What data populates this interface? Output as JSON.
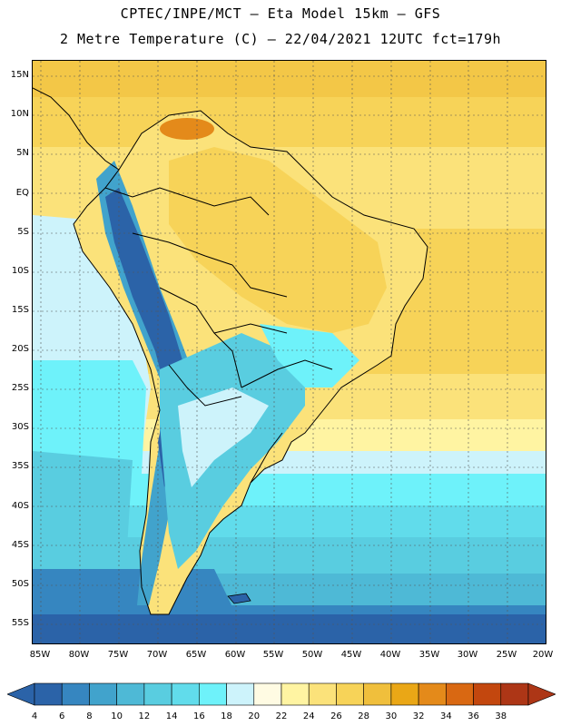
{
  "header": {
    "title_line1": "CPTEC/INPE/MCT –  Eta Model 15km – GFS",
    "title_line2": "2 Metre Temperature (C) – 22/04/2021 12UTC fct=179h"
  },
  "map": {
    "region": "South America",
    "lat_labels": [
      "15N",
      "10N",
      "5N",
      "EQ",
      "5S",
      "10S",
      "15S",
      "20S",
      "25S",
      "30S",
      "35S",
      "40S",
      "45S",
      "50S",
      "55S"
    ],
    "lon_labels": [
      "85W",
      "80W",
      "75W",
      "70W",
      "65W",
      "60W",
      "55W",
      "50W",
      "45W",
      "40W",
      "35W",
      "30W",
      "25W",
      "20W"
    ]
  },
  "legend": {
    "values": [
      "4",
      "6",
      "8",
      "10",
      "12",
      "14",
      "16",
      "18",
      "20",
      "22",
      "24",
      "26",
      "28",
      "30",
      "32",
      "34",
      "36",
      "38"
    ],
    "colors": [
      "#2b63a8",
      "#3686c0",
      "#41a3cc",
      "#4eb9d6",
      "#59cde0",
      "#61dceb",
      "#6ef2fa",
      "#cdf3fb",
      "#fffbe3",
      "#fff4a2",
      "#fbe27a",
      "#f7d358",
      "#f0bf3c",
      "#eaa716",
      "#e48a1a",
      "#d96812",
      "#c3470e",
      "#ad3616"
    ]
  }
}
